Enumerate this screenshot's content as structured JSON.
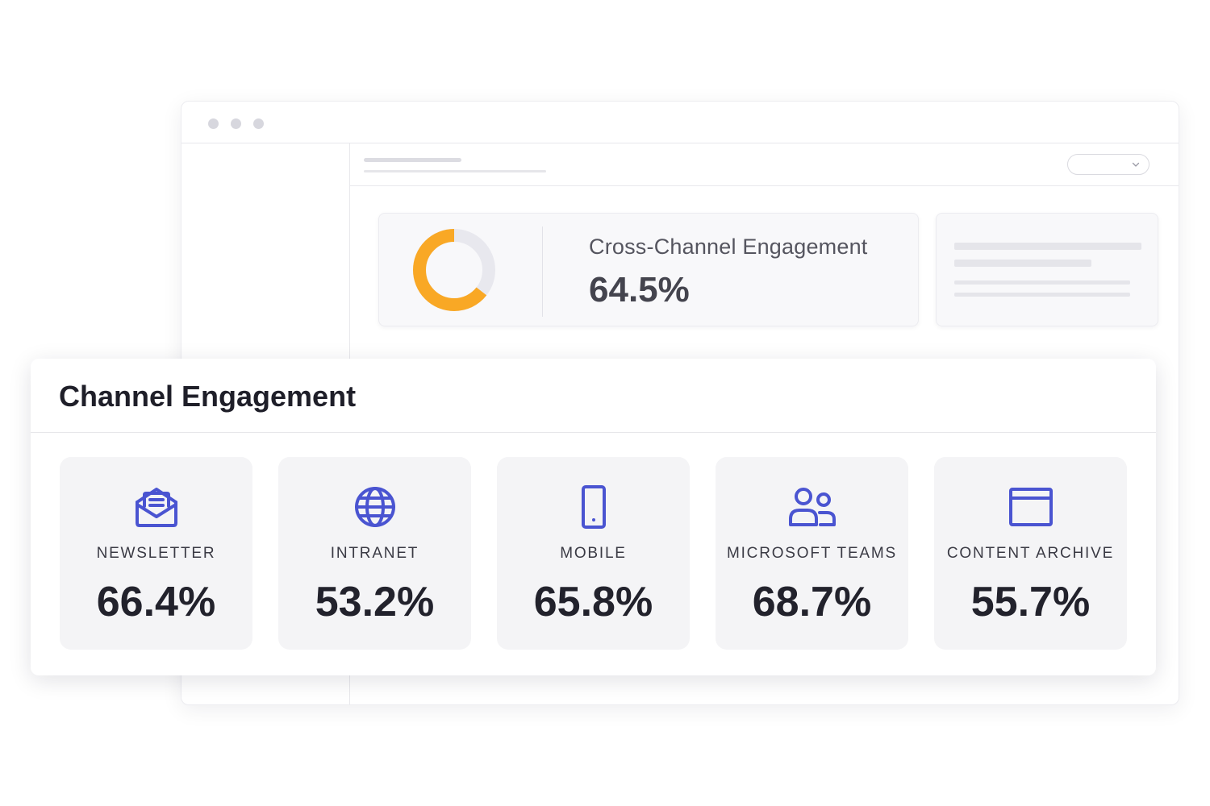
{
  "engagement_card": {
    "title": "Cross-Channel Engagement",
    "value": "64.5%",
    "percent": 64.5,
    "accent_color": "#f9a825",
    "track_color": "#e8e8ee"
  },
  "panel": {
    "title": "Channel Engagement",
    "icon_color": "#4a54d1",
    "channels": [
      {
        "label": "NEWSLETTER",
        "value": "66.4%",
        "icon": "envelope-icon"
      },
      {
        "label": "INTRANET",
        "value": "53.2%",
        "icon": "globe-icon"
      },
      {
        "label": "MOBILE",
        "value": "65.8%",
        "icon": "mobile-phone-icon"
      },
      {
        "label": "MICROSOFT TEAMS",
        "value": "68.7%",
        "icon": "users-icon"
      },
      {
        "label": "CONTENT ARCHIVE",
        "value": "55.7%",
        "icon": "browser-window-icon"
      }
    ]
  }
}
